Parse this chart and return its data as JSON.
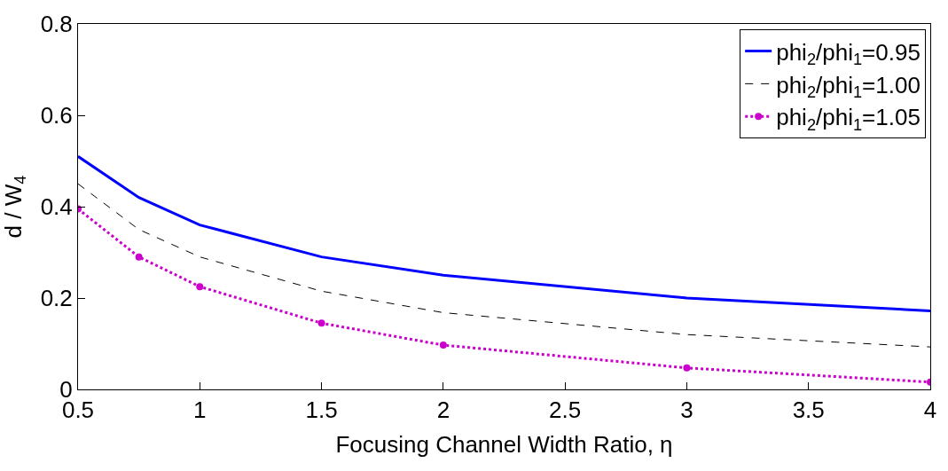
{
  "chart_data": {
    "type": "line",
    "xlabel": "Focusing Channel Width Ratio, η",
    "ylabel": "d / W$_{4}$",
    "x": [
      0.5,
      0.75,
      1,
      1.5,
      2,
      3,
      4
    ],
    "series": [
      {
        "name": "phi$_{2}$/phi$_{1}$=0.95",
        "color": "#0000ff",
        "line_style": "solid",
        "values": [
          0.51,
          0.42,
          0.36,
          0.29,
          0.25,
          0.2,
          0.172
        ]
      },
      {
        "name": "phi$_{2}$/phi$_{1}$=1.00",
        "color": "#000000",
        "line_style": "dashed",
        "values": [
          0.45,
          0.35,
          0.29,
          0.215,
          0.168,
          0.12,
          0.093
        ]
      },
      {
        "name": "phi$_{2}$/phi$_{1}$=1.05",
        "color": "#cc00cc",
        "line_style": "dotted",
        "marker": "circle",
        "values": [
          0.395,
          0.29,
          0.225,
          0.145,
          0.097,
          0.047,
          0.016
        ]
      }
    ],
    "xlim": [
      0.5,
      4
    ],
    "xticks": [
      0.5,
      1,
      1.5,
      2,
      2.5,
      3,
      3.5,
      4
    ],
    "ylim": [
      0,
      0.8
    ],
    "yticks": [
      0,
      0.2,
      0.4,
      0.6,
      0.8
    ],
    "legend": "top right"
  }
}
